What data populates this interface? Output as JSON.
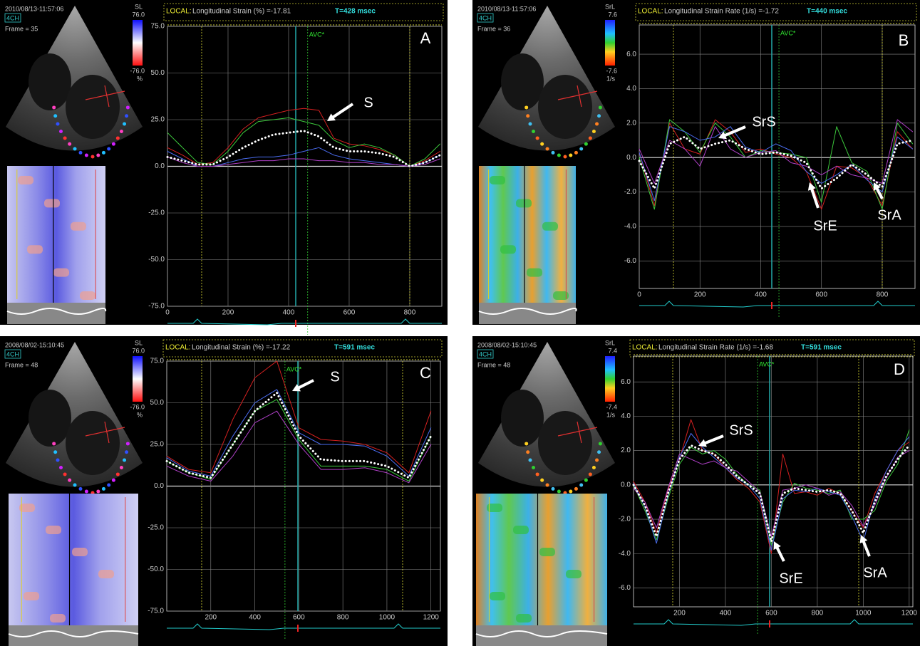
{
  "chart_data": [
    {
      "type": "line",
      "panel": "A",
      "image": {
        "timestamp": "2010/08/13-11:57:06",
        "view": "4CH",
        "frame": "Frame = 35",
        "scale_label": "SL",
        "scale_max": "76.0",
        "scale_min": "-76.0",
        "scale_unit": "%"
      },
      "status": {
        "mode": "LOCAL:",
        "measure": "Longitudinal Strain (%) =-17.81",
        "time": "T=428 msec"
      },
      "markers": [
        {
          "label": "AVC*",
          "x": 463
        }
      ],
      "annotations": [
        "S"
      ],
      "xlim": [
        0,
        906
      ],
      "xticks": [
        0,
        200,
        400,
        600,
        800
      ],
      "ylim": [
        -75,
        75
      ],
      "yticks": [
        {
          "value": 75,
          "label": "75.0"
        },
        {
          "value": 50,
          "label": "50.0"
        },
        {
          "value": 25,
          "label": "25.0"
        },
        {
          "value": 0,
          "label": "0.0"
        },
        {
          "value": -25,
          "label": "-25.0"
        },
        {
          "value": -50,
          "label": "-50.0"
        },
        {
          "value": -75,
          "label": "-75.0"
        }
      ],
      "grid": true,
      "x": [
        0,
        50,
        100,
        150,
        200,
        250,
        300,
        350,
        400,
        450,
        500,
        550,
        600,
        650,
        700,
        750,
        800,
        850,
        900
      ],
      "series": [
        {
          "color": "#d42020",
          "values": [
            10,
            6,
            1,
            2,
            10,
            20,
            26,
            28,
            30,
            31,
            30,
            15,
            12,
            11,
            9,
            6,
            0,
            3,
            8
          ]
        },
        {
          "color": "#3cc83c",
          "values": [
            18,
            10,
            2,
            1,
            8,
            18,
            24,
            25,
            26,
            24,
            22,
            14,
            10,
            12,
            10,
            6,
            0,
            4,
            12
          ]
        },
        {
          "color": "#4a6cf0",
          "values": [
            8,
            4,
            0,
            0,
            2,
            4,
            5,
            5,
            6,
            8,
            10,
            6,
            4,
            3,
            2,
            1,
            0,
            2,
            6
          ]
        },
        {
          "color": "#b040c8",
          "values": [
            5,
            2,
            0,
            0,
            1,
            2,
            3,
            3,
            4,
            4,
            3,
            3,
            2,
            2,
            1,
            1,
            0,
            1,
            4
          ]
        },
        {
          "color": "#ffffff",
          "style": "dotted",
          "values": [
            5,
            3,
            1,
            1,
            5,
            10,
            14,
            17,
            18,
            19,
            16,
            10,
            8,
            8,
            7,
            5,
            0,
            2,
            6
          ]
        }
      ]
    },
    {
      "type": "line",
      "panel": "B",
      "image": {
        "timestamp": "2010/08/13-11:57:06",
        "view": "4CH",
        "frame": "Frame = 36",
        "scale_label": "SrL",
        "scale_max": "7.6",
        "scale_min": "-7.6",
        "scale_unit": "1/s"
      },
      "status": {
        "mode": "LOCAL:",
        "measure": "Longitudinal Strain Rate (1/s) =-1.72",
        "time": "T=440 msec"
      },
      "markers": [
        {
          "label": "AVC*",
          "x": 460
        }
      ],
      "annotations": [
        "SrS",
        "SrE",
        "SrA"
      ],
      "xlim": [
        0,
        908
      ],
      "xticks": [
        0,
        200,
        400,
        600,
        800
      ],
      "ylim": [
        -7.6,
        7.7
      ],
      "yticks": [
        {
          "value": 6,
          "label": "6.0"
        },
        {
          "value": 4,
          "label": "4.0"
        },
        {
          "value": 2,
          "label": "2.0"
        },
        {
          "value": 0,
          "label": "0.0"
        },
        {
          "value": -2,
          "label": "-2.0"
        },
        {
          "value": -4,
          "label": "-4.0"
        },
        {
          "value": -6,
          "label": "-6.0"
        }
      ],
      "grid": true,
      "x": [
        0,
        50,
        100,
        150,
        200,
        250,
        300,
        350,
        400,
        450,
        500,
        550,
        600,
        650,
        700,
        750,
        800,
        850,
        900
      ],
      "series": [
        {
          "color": "#d42020",
          "values": [
            0.3,
            -2.8,
            2.0,
            0.5,
            0.2,
            2.2,
            1.5,
            0.3,
            0.5,
            0.2,
            0.0,
            -0.8,
            -3.0,
            -0.5,
            -0.6,
            -1.2,
            -2.8,
            1.5,
            0.5
          ]
        },
        {
          "color": "#3cc83c",
          "values": [
            0.0,
            -3.0,
            2.2,
            1.5,
            0.3,
            2.0,
            1.2,
            0.0,
            0.4,
            0.3,
            0.2,
            0.0,
            -2.6,
            1.8,
            -0.3,
            -0.8,
            -3.0,
            2.0,
            0.8
          ]
        },
        {
          "color": "#4a6cf0",
          "values": [
            0.3,
            -2.5,
            1.8,
            1.5,
            1.0,
            1.2,
            1.8,
            0.6,
            0.3,
            0.8,
            0.4,
            -0.8,
            -1.5,
            -1.0,
            -0.4,
            -1.3,
            -2.0,
            1.2,
            0.5
          ]
        },
        {
          "color": "#b040c8",
          "values": [
            0.5,
            -1.5,
            1.0,
            0.5,
            -0.5,
            1.8,
            0.5,
            0.0,
            0.3,
            0.4,
            -0.3,
            -0.5,
            -1.0,
            -0.5,
            -1.0,
            -1.2,
            -1.5,
            2.2,
            1.5
          ]
        },
        {
          "color": "#ffffff",
          "style": "dotted",
          "values": [
            -0.2,
            -1.8,
            0.8,
            1.2,
            0.5,
            0.8,
            1.0,
            0.5,
            0.2,
            0.3,
            0.1,
            -0.3,
            -1.8,
            -1.2,
            -0.4,
            -1.0,
            -1.7,
            0.8,
            1.0
          ]
        }
      ]
    },
    {
      "type": "line",
      "panel": "C",
      "image": {
        "timestamp": "2008/08/02-15:10:45",
        "view": "4CH",
        "frame": "Frame = 48",
        "scale_label": "SL",
        "scale_max": "76.0",
        "scale_min": "-76.0",
        "scale_unit": "%"
      },
      "status": {
        "mode": "LOCAL:",
        "measure": "Longitudinal Strain (%) =-17.22",
        "time": "T=591 msec"
      },
      "markers": [
        {
          "label": "AVC*",
          "x": 537
        }
      ],
      "annotations": [
        "S"
      ],
      "xlim": [
        0,
        1243
      ],
      "xticks": [
        200,
        400,
        600,
        800,
        1000,
        1200
      ],
      "ylim": [
        -75,
        75
      ],
      "yticks": [
        {
          "value": 75,
          "label": "75.0"
        },
        {
          "value": 50,
          "label": "50.0"
        },
        {
          "value": 25,
          "label": "25.0"
        },
        {
          "value": 0,
          "label": "0.0"
        },
        {
          "value": -25,
          "label": "-25.0"
        },
        {
          "value": -50,
          "label": "-50.0"
        },
        {
          "value": -75,
          "label": "-75.0"
        }
      ],
      "grid": true,
      "x": [
        0,
        100,
        200,
        300,
        400,
        500,
        600,
        700,
        800,
        900,
        1000,
        1100,
        1200
      ],
      "series": [
        {
          "color": "#d42020",
          "values": [
            18,
            10,
            8,
            40,
            65,
            75,
            35,
            28,
            27,
            25,
            20,
            8,
            45
          ]
        },
        {
          "color": "#3cc83c",
          "values": [
            15,
            8,
            4,
            25,
            45,
            52,
            28,
            12,
            12,
            12,
            10,
            3,
            30
          ]
        },
        {
          "color": "#4a6cf0",
          "values": [
            17,
            9,
            6,
            30,
            50,
            58,
            32,
            25,
            25,
            24,
            18,
            6,
            35
          ]
        },
        {
          "color": "#b040c8",
          "values": [
            12,
            6,
            3,
            18,
            38,
            45,
            25,
            10,
            10,
            11,
            8,
            2,
            25
          ]
        },
        {
          "color": "#ffffff",
          "style": "dotted",
          "values": [
            15,
            8,
            5,
            25,
            45,
            56,
            30,
            16,
            15,
            15,
            12,
            5,
            30
          ]
        }
      ]
    },
    {
      "type": "line",
      "panel": "D",
      "image": {
        "timestamp": "2008/08/02-15:10:45",
        "view": "4CH",
        "frame": "Frame = 48",
        "scale_label": "SrL",
        "scale_max": "7.4",
        "scale_min": "-7.4",
        "scale_unit": "1/s"
      },
      "status": {
        "mode": "LOCAL:",
        "measure": "Longitudinal Strain Rate (1/s) =-1.68",
        "time": "T=591 msec"
      },
      "markers": [
        {
          "label": "AVC*",
          "x": 540
        }
      ],
      "annotations": [
        "SrS",
        "SrE",
        "SrA"
      ],
      "xlim": [
        0,
        1216
      ],
      "xticks": [
        200,
        400,
        600,
        800,
        1000,
        1200
      ],
      "ylim": [
        -7.1,
        7.5
      ],
      "yticks": [
        {
          "value": 6,
          "label": "6.0"
        },
        {
          "value": 4,
          "label": "4.0"
        },
        {
          "value": 2,
          "label": "2.0"
        },
        {
          "value": 0,
          "label": "0.0"
        },
        {
          "value": -2,
          "label": "-2.0"
        },
        {
          "value": -4,
          "label": "-4.0"
        },
        {
          "value": -6,
          "label": "-6.0"
        }
      ],
      "grid": true,
      "x": [
        0,
        50,
        100,
        150,
        200,
        250,
        300,
        350,
        400,
        450,
        500,
        550,
        600,
        650,
        700,
        750,
        800,
        850,
        900,
        950,
        1000,
        1050,
        1100,
        1150,
        1200
      ],
      "series": [
        {
          "color": "#d42020",
          "values": [
            0.2,
            -1.0,
            -2.8,
            -0.3,
            1.5,
            3.8,
            2.0,
            1.8,
            1.0,
            0.3,
            -0.2,
            -1.0,
            -4.0,
            1.8,
            -0.5,
            -0.4,
            -0.6,
            -0.2,
            -0.5,
            -1.5,
            -2.5,
            -0.5,
            0.8,
            2.0,
            2.5
          ]
        },
        {
          "color": "#3cc83c",
          "values": [
            0,
            -1.5,
            -3.2,
            -0.8,
            1.2,
            2.2,
            1.8,
            2.0,
            1.5,
            0.6,
            0,
            -0.3,
            -3.5,
            -1.0,
            0.1,
            -0.2,
            -0.3,
            -0.5,
            -0.3,
            -2.0,
            -2.0,
            -1.5,
            0.2,
            1.2,
            3.2
          ]
        },
        {
          "color": "#4a6cf0",
          "values": [
            0.1,
            -1.3,
            -3.4,
            -0.6,
            1.6,
            3.0,
            2.2,
            1.6,
            1.0,
            0.4,
            0,
            -0.8,
            -3.8,
            -0.8,
            -0.3,
            -0.4,
            -0.2,
            -0.4,
            -0.6,
            -1.8,
            -3.3,
            -0.8,
            0.8,
            2.0,
            2.8
          ]
        },
        {
          "color": "#b040c8",
          "values": [
            -0.2,
            -1.0,
            -2.5,
            -0.2,
            1.8,
            1.5,
            1.2,
            1.4,
            1.0,
            0.8,
            0.2,
            -0.4,
            -3.0,
            -0.3,
            -0.2,
            0,
            -0.2,
            -0.6,
            -0.4,
            -1.2,
            -2.4,
            -1.2,
            0.4,
            1.6,
            2.0
          ]
        },
        {
          "color": "#ffffff",
          "style": "dotted",
          "values": [
            0,
            -1.2,
            -3.0,
            -0.5,
            1.5,
            2.3,
            2.0,
            1.8,
            1.2,
            0.5,
            0,
            -0.5,
            -3.3,
            -0.5,
            -0.2,
            -0.3,
            -0.4,
            -0.3,
            -0.5,
            -1.5,
            -2.8,
            -1.0,
            0.5,
            1.5,
            2.3
          ]
        }
      ]
    }
  ]
}
